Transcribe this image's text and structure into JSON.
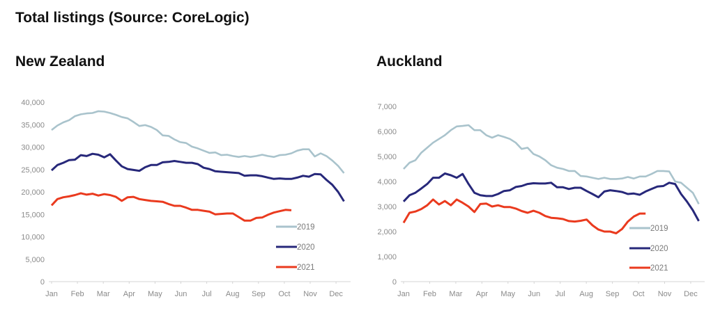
{
  "title": "Total listings (Source: CoreLogic)",
  "colors": {
    "2019": "#a9c3cc",
    "2020": "#27287a",
    "2021": "#ea3a1e"
  },
  "chart_data": [
    {
      "type": "line",
      "title": "New Zealand",
      "x_ticks": [
        "Jan",
        "Feb",
        "Mar",
        "Apr",
        "May",
        "Jun",
        "Jul",
        "Aug",
        "Sep",
        "Oct",
        "Nov",
        "Dec"
      ],
      "x_note": "weekly values starting in January",
      "ylim": [
        0,
        40000
      ],
      "y_ticks": [
        "0",
        "5,000",
        "10,000",
        "15,000",
        "20,000",
        "25,000",
        "30,000",
        "35,000",
        "40,000"
      ],
      "legend": "bottom-right",
      "grid": false,
      "series": [
        {
          "name": "2019",
          "values": [
            33800,
            34800,
            35500,
            36000,
            36900,
            37300,
            37500,
            37600,
            38000,
            37900,
            37600,
            37200,
            36700,
            36400,
            35600,
            34700,
            34900,
            34500,
            33800,
            32600,
            32500,
            31700,
            31100,
            30900,
            30100,
            29700,
            29200,
            28700,
            28800,
            28200,
            28300,
            28000,
            27800,
            28000,
            27800,
            28000,
            28300,
            28000,
            27800,
            28200,
            28300,
            28600,
            29200,
            29500,
            29500,
            27900,
            28600,
            28000,
            27000,
            25800,
            24200
          ]
        },
        {
          "name": "2020",
          "values": [
            24800,
            26000,
            26500,
            27100,
            27200,
            28200,
            28000,
            28500,
            28300,
            27700,
            28400,
            27000,
            25700,
            25100,
            24900,
            24700,
            25500,
            26000,
            26000,
            26600,
            26700,
            26900,
            26700,
            26500,
            26500,
            26200,
            25400,
            25100,
            24600,
            24500,
            24400,
            24300,
            24200,
            23600,
            23700,
            23700,
            23500,
            23200,
            22900,
            23000,
            22900,
            22900,
            23200,
            23600,
            23400,
            24000,
            23900,
            22700,
            21600,
            20000,
            17900
          ]
        },
        {
          "name": "2021",
          "values": [
            17000,
            18400,
            18800,
            19000,
            19300,
            19700,
            19400,
            19600,
            19200,
            19500,
            19300,
            18900,
            18000,
            18800,
            18900,
            18400,
            18200,
            18000,
            17900,
            17800,
            17300,
            16900,
            16900,
            16500,
            16000,
            16000,
            15800,
            15600,
            15000,
            15100,
            15200,
            15200,
            14400,
            13600,
            13600,
            14200,
            14300,
            14900,
            15400,
            15700,
            16000,
            15900
          ]
        }
      ]
    },
    {
      "type": "line",
      "title": "Auckland",
      "x_ticks": [
        "Jan",
        "Feb",
        "Mar",
        "Apr",
        "May",
        "Jun",
        "Jul",
        "Aug",
        "Sep",
        "Oct",
        "Nov",
        "Dec"
      ],
      "x_note": "weekly values starting in January",
      "ylim": [
        0,
        7000
      ],
      "y_ticks": [
        "0",
        "1,000",
        "2,000",
        "3,000",
        "4,000",
        "5,000",
        "6,000",
        "7,000"
      ],
      "legend": "bottom-right",
      "grid": false,
      "series": [
        {
          "name": "2019",
          "values": [
            4500,
            4750,
            4850,
            5150,
            5350,
            5550,
            5700,
            5850,
            6050,
            6200,
            6220,
            6250,
            6050,
            6050,
            5850,
            5750,
            5850,
            5780,
            5700,
            5550,
            5300,
            5350,
            5100,
            5000,
            4850,
            4650,
            4550,
            4500,
            4420,
            4420,
            4220,
            4200,
            4150,
            4100,
            4150,
            4100,
            4100,
            4120,
            4180,
            4120,
            4200,
            4200,
            4300,
            4420,
            4420,
            4400,
            4000,
            3950,
            3750,
            3550,
            3100
          ]
        },
        {
          "name": "2020",
          "values": [
            3200,
            3450,
            3550,
            3720,
            3900,
            4150,
            4150,
            4320,
            4250,
            4150,
            4300,
            3900,
            3550,
            3450,
            3420,
            3420,
            3500,
            3620,
            3650,
            3780,
            3820,
            3900,
            3930,
            3920,
            3920,
            3950,
            3770,
            3770,
            3700,
            3750,
            3750,
            3620,
            3500,
            3370,
            3600,
            3650,
            3620,
            3580,
            3500,
            3520,
            3470,
            3600,
            3700,
            3800,
            3820,
            3950,
            3900,
            3500,
            3200,
            2850,
            2420
          ]
        },
        {
          "name": "2021",
          "values": [
            2350,
            2750,
            2800,
            2900,
            3050,
            3280,
            3080,
            3220,
            3050,
            3280,
            3150,
            3000,
            2780,
            3100,
            3120,
            3000,
            3050,
            2980,
            2980,
            2920,
            2820,
            2750,
            2830,
            2750,
            2620,
            2550,
            2530,
            2500,
            2420,
            2400,
            2430,
            2480,
            2250,
            2080,
            2000,
            2000,
            1930,
            2100,
            2400,
            2600,
            2720,
            2720
          ]
        }
      ]
    }
  ]
}
